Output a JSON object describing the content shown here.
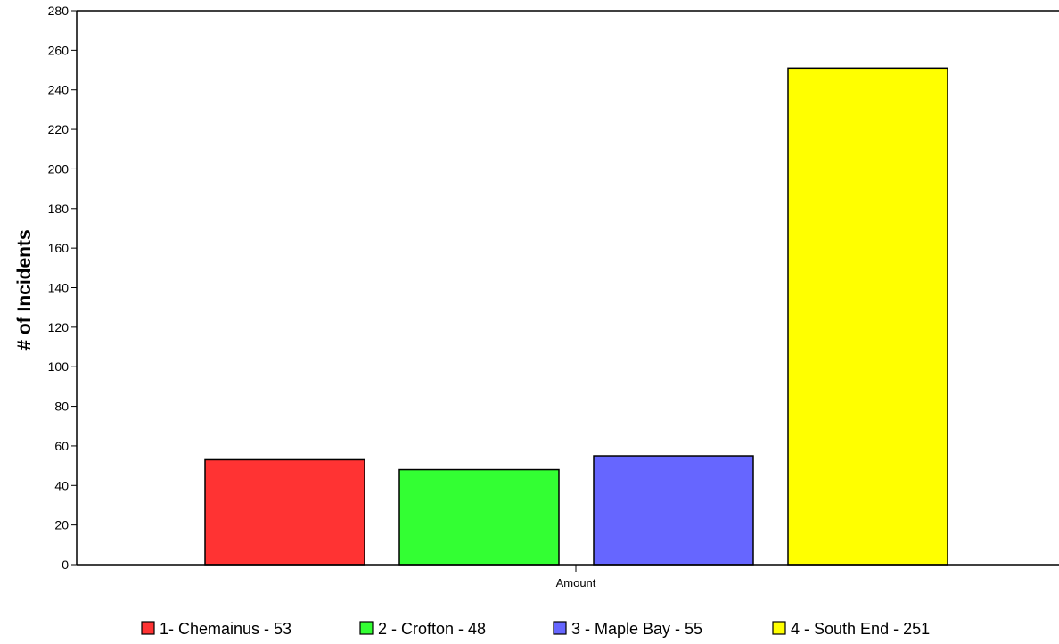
{
  "chart_data": {
    "type": "bar",
    "x_label": "Amount",
    "y_label": "# of Incidents",
    "ylim": [
      0,
      280
    ],
    "y_ticks": [
      0,
      20,
      40,
      60,
      80,
      100,
      120,
      140,
      160,
      180,
      200,
      220,
      240,
      260,
      280
    ],
    "grid": false,
    "legend_position": "bottom",
    "series": [
      {
        "name": "1- Chemainus - 53",
        "value": 53,
        "color": "#ff3333"
      },
      {
        "name": "2 - Crofton - 48",
        "value": 48,
        "color": "#33ff33"
      },
      {
        "name": "3 - Maple Bay - 55",
        "value": 55,
        "color": "#6666ff"
      },
      {
        "name": "4 - South End - 251",
        "value": 251,
        "color": "#ffff00"
      }
    ]
  }
}
